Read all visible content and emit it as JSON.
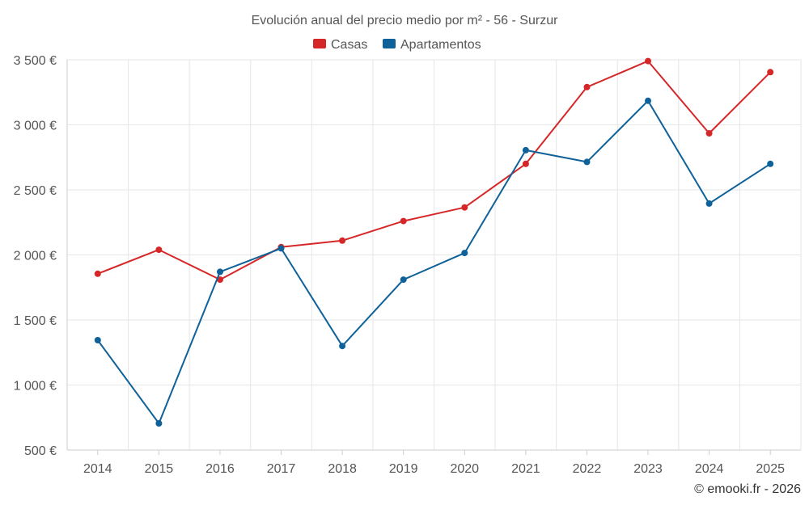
{
  "chart_data": {
    "type": "line",
    "title": "Evolución anual del precio medio por m² - 56 - Surzur",
    "categories": [
      "2014",
      "2015",
      "2016",
      "2017",
      "2018",
      "2019",
      "2020",
      "2021",
      "2022",
      "2023",
      "2024",
      "2025"
    ],
    "series": [
      {
        "name": "Casas",
        "color": "#d62728",
        "values": [
          1855,
          2040,
          1810,
          2060,
          2110,
          2260,
          2365,
          2700,
          3290,
          3490,
          2935,
          3405
        ]
      },
      {
        "name": "Apartamentos",
        "color": "#0e6199",
        "values": [
          1345,
          705,
          1870,
          2050,
          1300,
          1810,
          2015,
          2805,
          2715,
          3185,
          2395,
          2700
        ]
      }
    ],
    "ylim": [
      500,
      3500
    ],
    "y_ticks": [
      500,
      1000,
      1500,
      2000,
      2500,
      3000,
      3500
    ],
    "y_tick_labels": [
      "500 €",
      "1 000 €",
      "1 500 €",
      "2 000 €",
      "2 500 €",
      "3 000 €",
      "3 500 €"
    ],
    "xlabel": "",
    "ylabel": "",
    "grid": true,
    "legend": "top-center"
  },
  "credit": "© emooki.fr - 2026"
}
